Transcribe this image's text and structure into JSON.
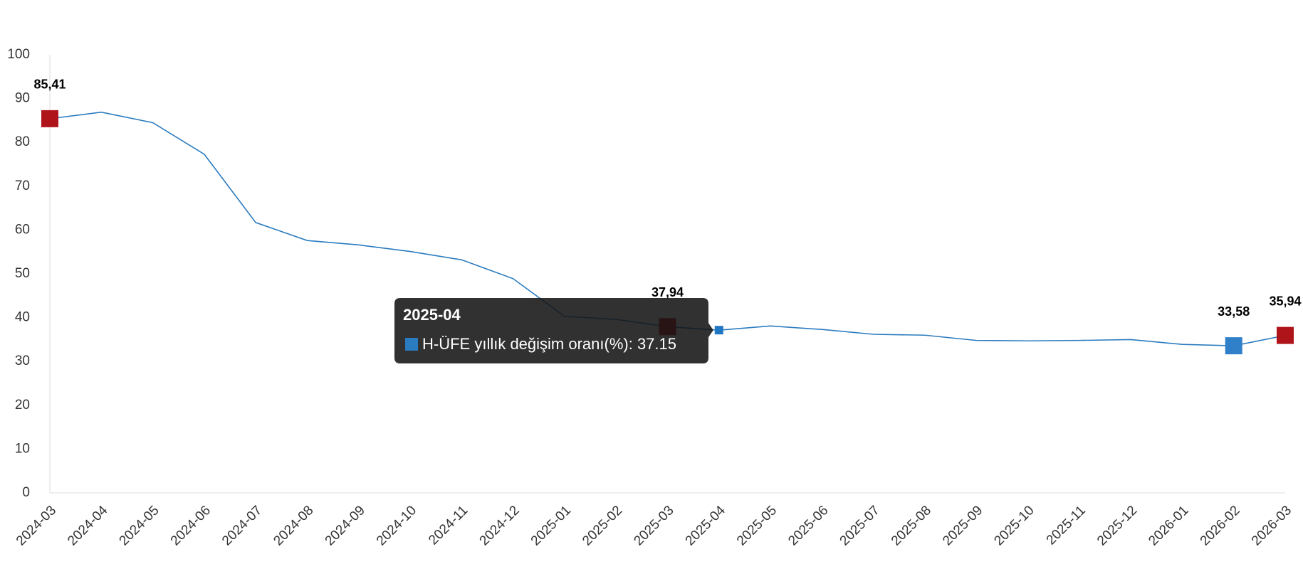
{
  "chart_data": {
    "type": "line",
    "categories": [
      "2024-03",
      "2024-04",
      "2024-05",
      "2024-06",
      "2024-07",
      "2024-08",
      "2024-09",
      "2024-10",
      "2024-11",
      "2024-12",
      "2025-01",
      "2025-02",
      "2025-03",
      "2025-04",
      "2025-05",
      "2025-06",
      "2025-07",
      "2025-08",
      "2025-09",
      "2025-10",
      "2025-11",
      "2025-12",
      "2026-01",
      "2026-02",
      "2026-03"
    ],
    "series": [
      {
        "name": "H-ÜFE yıllık değişim oranı(%)",
        "color": "#2a7bbf",
        "values": [
          85.41,
          86.9,
          84.5,
          77.3,
          61.7,
          57.6,
          56.6,
          55.1,
          53.2,
          48.9,
          40.3,
          39.6,
          37.94,
          37.15,
          38.1,
          37.3,
          36.2,
          36.0,
          34.8,
          34.7,
          34.8,
          35.0,
          33.9,
          33.58,
          35.94
        ],
        "value_labels": [
          "85,41",
          null,
          null,
          null,
          null,
          null,
          null,
          null,
          null,
          null,
          null,
          null,
          "37,94",
          null,
          null,
          null,
          null,
          null,
          null,
          null,
          null,
          null,
          null,
          "33,58",
          "35,94"
        ],
        "marker_colors": [
          "#b0141b",
          null,
          null,
          null,
          null,
          null,
          null,
          null,
          null,
          null,
          null,
          null,
          "#b0141b",
          "#1f77c4",
          null,
          null,
          null,
          null,
          null,
          null,
          null,
          null,
          null,
          "#2f80c8",
          "#b0141b"
        ]
      }
    ],
    "ylim": [
      0,
      100
    ],
    "yticks": [
      0,
      10,
      20,
      30,
      40,
      50,
      60,
      70,
      80,
      90,
      100
    ],
    "grid": false,
    "tooltip": {
      "title": "2025-04",
      "text": "H-ÜFE yıllık değişim oranı(%): 37.15"
    }
  }
}
